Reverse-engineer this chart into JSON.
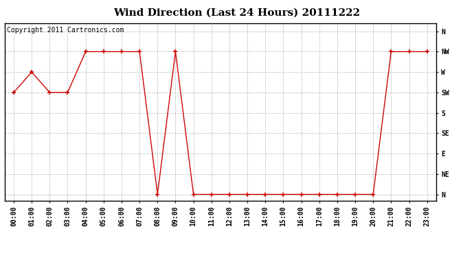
{
  "title": "Wind Direction (Last 24 Hours) 20111222",
  "copyright_text": "Copyright 2011 Cartronics.com",
  "x_labels": [
    "00:00",
    "01:00",
    "02:00",
    "03:00",
    "04:00",
    "05:00",
    "06:00",
    "07:00",
    "08:00",
    "09:00",
    "10:00",
    "11:00",
    "12:00",
    "13:00",
    "14:00",
    "15:00",
    "16:00",
    "17:00",
    "18:00",
    "19:00",
    "20:00",
    "21:00",
    "22:00",
    "23:00"
  ],
  "y_labels": [
    "N",
    "NE",
    "E",
    "SE",
    "S",
    "SW",
    "W",
    "NW",
    "N"
  ],
  "y_values": [
    0,
    1,
    2,
    3,
    4,
    5,
    6,
    7,
    8
  ],
  "data_hours": [
    0,
    1,
    2,
    3,
    4,
    5,
    6,
    7,
    8,
    9,
    10,
    11,
    12,
    13,
    14,
    15,
    16,
    17,
    18,
    19,
    20,
    21,
    22,
    23
  ],
  "data_directions": [
    5,
    6,
    5,
    5,
    7,
    7,
    7,
    7,
    0,
    7,
    0,
    0,
    0,
    0,
    0,
    0,
    0,
    0,
    0,
    0,
    0,
    7,
    7,
    7
  ],
  "line_color": "#cc0000",
  "marker": "+",
  "marker_size": 5,
  "bg_color": "#ffffff",
  "plot_bg_color": "#ffffff",
  "grid_color": "#aaaaaa",
  "title_fontsize": 11,
  "tick_fontsize": 7,
  "copyright_fontsize": 7
}
